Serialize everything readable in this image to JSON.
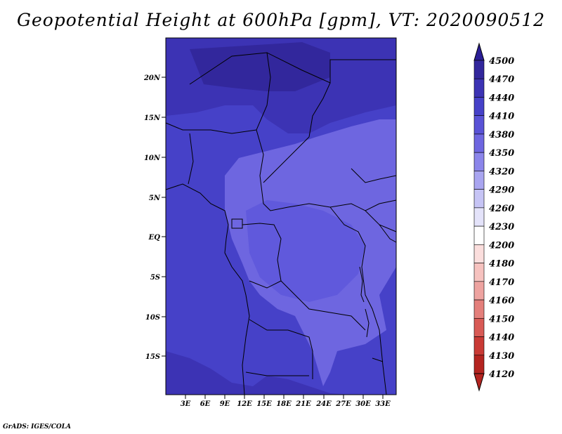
{
  "title": "Geopotential Height at 600hPa [gpm], VT: 2020090512",
  "credit": "GrADS: IGES/COLA",
  "map": {
    "lat_ticks": [
      "20N",
      "15N",
      "10N",
      "5N",
      "EQ",
      "5S",
      "10S",
      "15S"
    ],
    "lon_ticks": [
      "3E",
      "6E",
      "9E",
      "12E",
      "15E",
      "18E",
      "21E",
      "24E",
      "27E",
      "30E",
      "33E"
    ]
  },
  "colorbar": {
    "levels": [
      "4500",
      "4470",
      "4440",
      "4410",
      "4380",
      "4350",
      "4320",
      "4290",
      "4260",
      "4230",
      "4200",
      "4180",
      "4170",
      "4160",
      "4150",
      "4140",
      "4130",
      "4120"
    ],
    "colors": [
      "#2b1e96",
      "#32279c",
      "#3c33b4",
      "#4641c8",
      "#5952d6",
      "#6e66e0",
      "#8b85ea",
      "#a9a5f0",
      "#c6c4f5",
      "#e4e3fa",
      "#ffffff",
      "#fbdedd",
      "#f6c2bf",
      "#eea3a0",
      "#e47f7b",
      "#d85a55",
      "#c93a35",
      "#b42420"
    ]
  }
}
